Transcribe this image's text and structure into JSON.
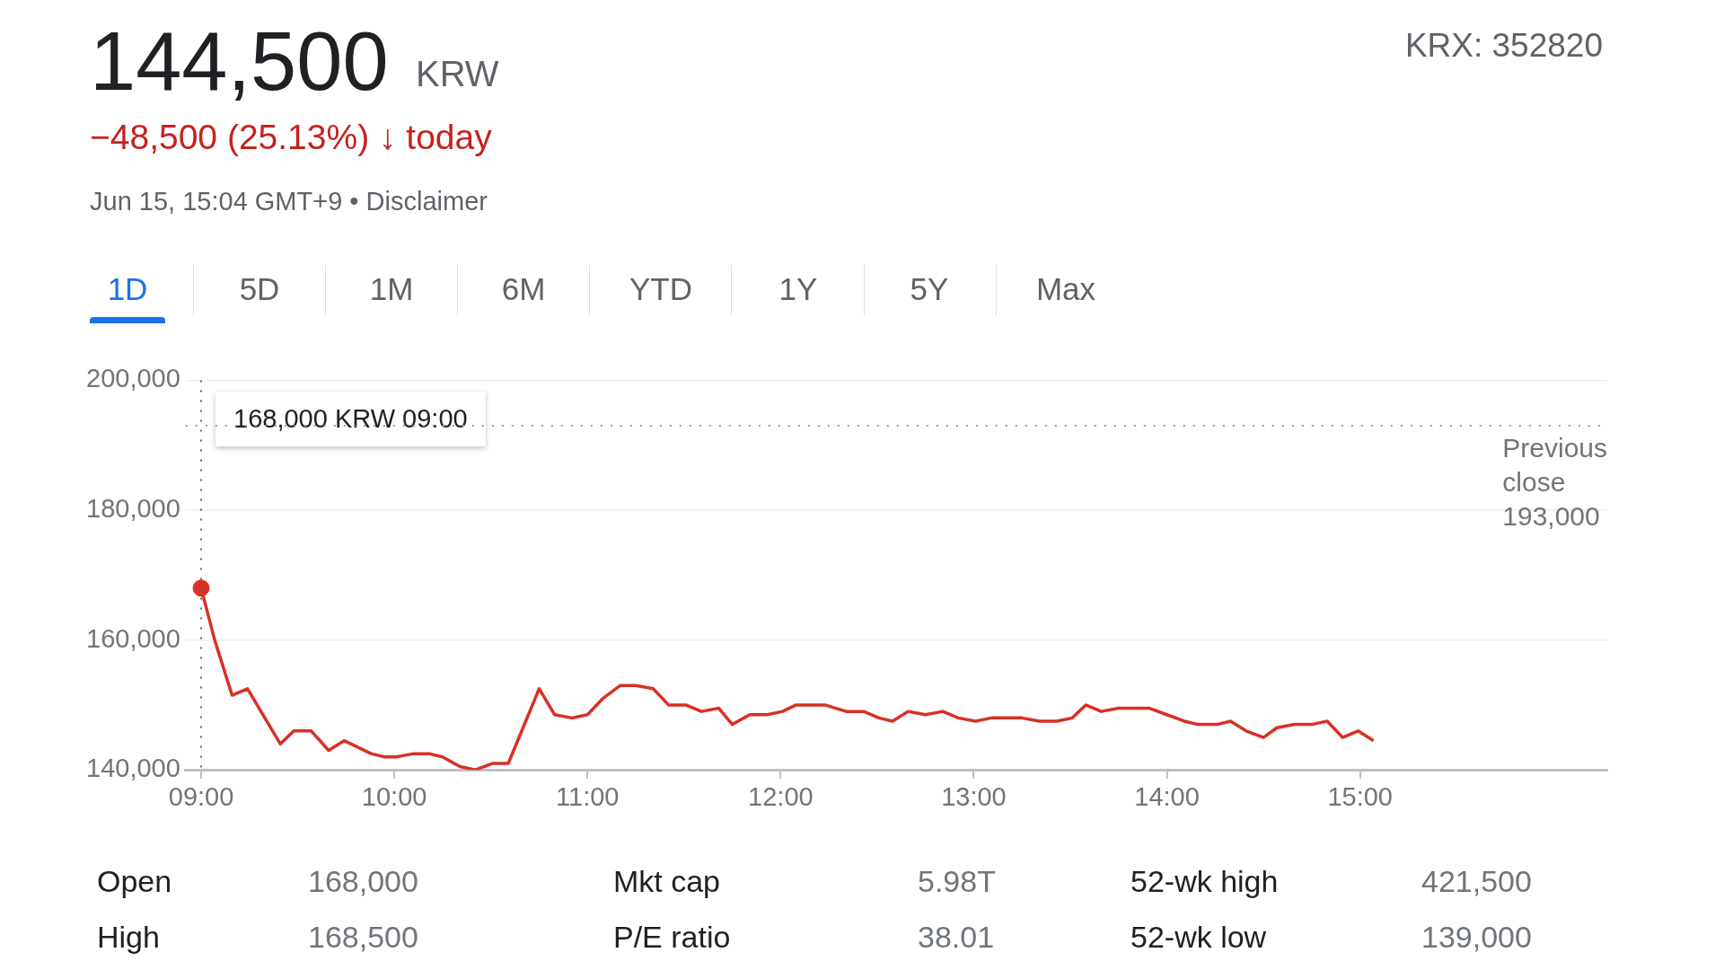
{
  "chart_data": {
    "type": "line",
    "title": "144,500",
    "subtitle": "−48,500 (25.13%) ↓ today",
    "annotations": [
      "KRW",
      "Jun 15, 15:04 GMT+9 • Disclaimer",
      "KRX: 352820",
      "1D",
      "5D",
      "1M",
      "6M",
      "YTD",
      "1Y",
      "5Y",
      "Max",
      "Open",
      "168,000",
      "Mkt cap",
      "5.98T",
      "52-wk high",
      "421,500",
      "High",
      "168,500",
      "P/E ratio",
      "38.01",
      "52-wk low",
      "139,000",
      "168,000 KRW  09:00"
    ],
    "series": [
      {
        "color": "#d93025",
        "x": [
          9,
          9.07,
          9.16,
          9.24,
          9.41,
          9.48,
          9.57,
          9.66,
          9.74,
          9.88,
          9.95,
          10.01,
          10.1,
          10.18,
          10.25,
          10.34,
          10.42,
          10.51,
          10.59,
          10.75,
          10.83,
          10.92,
          11,
          11.08,
          11.17,
          11.25,
          11.34,
          11.42,
          11.51,
          11.59,
          11.68,
          11.75,
          11.84,
          11.93,
          12.01,
          12.08,
          12.16,
          12.23,
          12.34,
          12.43,
          12.51,
          12.58,
          12.66,
          12.75,
          12.84,
          12.92,
          13.01,
          13.09,
          13.25,
          13.34,
          13.43,
          13.51,
          13.58,
          13.66,
          13.75,
          13.91,
          14,
          14.09,
          14.16,
          14.26,
          14.33,
          14.41,
          14.5,
          14.57,
          14.66,
          14.75,
          14.83,
          14.91,
          14.99,
          15.07
        ],
        "values": [
          168000,
          160000,
          151500,
          152500,
          144000,
          146000,
          146000,
          143000,
          144500,
          142500,
          142000,
          142000,
          142500,
          142500,
          142000,
          140500,
          140000,
          141000,
          141000,
          152500,
          148500,
          148000,
          148500,
          151000,
          153000,
          153000,
          152500,
          150000,
          150000,
          149000,
          149500,
          147000,
          148500,
          148500,
          149000,
          150000,
          150000,
          150000,
          149000,
          149000,
          148000,
          147500,
          149000,
          148500,
          149000,
          148000,
          147500,
          148000,
          148000,
          147500,
          147500,
          148000,
          150000,
          149000,
          149500,
          149500,
          148500,
          147500,
          147000,
          147000,
          147500,
          146000,
          145000,
          146500,
          147000,
          147000,
          147500,
          145000,
          146000,
          144500
        ]
      },
      {
        "type": "scatter",
        "marker": "circle",
        "color": "#d93025",
        "x": [
          9
        ],
        "values": [
          168000
        ]
      }
    ],
    "xlim": [
      8.92,
      16.28
    ],
    "xticks": [
      {
        "value": 9,
        "label": "09:00"
      },
      {
        "value": 10,
        "label": "10:00"
      },
      {
        "value": 11,
        "label": "11:00"
      },
      {
        "value": 12,
        "label": "12:00"
      },
      {
        "value": 13,
        "label": "13:00"
      },
      {
        "value": 14,
        "label": "14:00"
      },
      {
        "value": 15,
        "label": "15:00"
      }
    ],
    "ylim": [
      140000,
      200000
    ],
    "yticks": [
      {
        "value": 140000,
        "label": "140,000"
      },
      {
        "value": 160000,
        "label": "160,000"
      },
      {
        "value": 180000,
        "label": "180,000"
      },
      {
        "value": 200000,
        "label": "200,000"
      }
    ],
    "ref_lines": [
      {
        "axis": "y",
        "value": 193000,
        "label": "Previous close 193,000",
        "color": "#9aa0a6",
        "line_style": "dotted"
      },
      {
        "axis": "x",
        "value": 9,
        "color": "#5f6368",
        "line_style": "dotted"
      }
    ],
    "grid": "y",
    "legend": false,
    "marker": "none",
    "line_style": "solid"
  }
}
